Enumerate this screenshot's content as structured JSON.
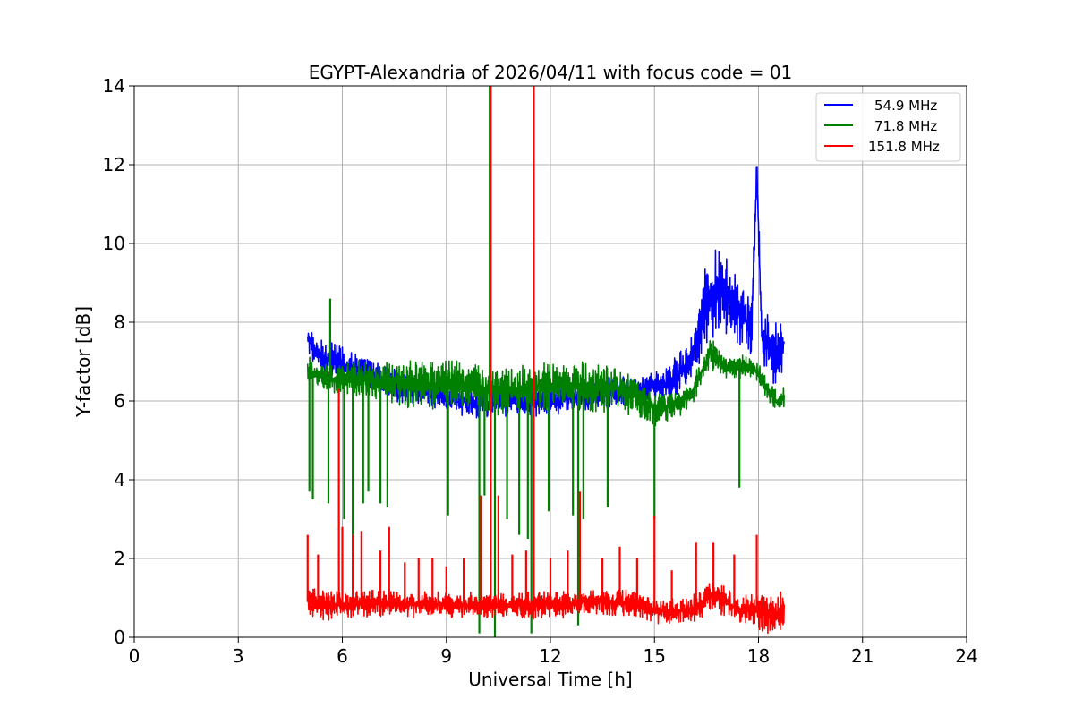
{
  "chart_data": {
    "type": "line",
    "title": "EGYPT-Alexandria of 2026/04/11 with focus code = 01",
    "xlabel": "Universal Time [h]",
    "ylabel": "Y-factor [dB]",
    "xlim": [
      0,
      24
    ],
    "ylim": [
      0,
      14
    ],
    "xticks": [
      0,
      3,
      6,
      9,
      12,
      15,
      18,
      21,
      24
    ],
    "yticks": [
      0,
      2,
      4,
      6,
      8,
      10,
      12,
      14
    ],
    "xtick_labels": [
      "0",
      "3",
      "6",
      "9",
      "12",
      "15",
      "18",
      "21",
      "24"
    ],
    "ytick_labels": [
      "0",
      "2",
      "4",
      "6",
      "8",
      "10",
      "12",
      "14"
    ],
    "grid": true,
    "legend_position": "top-right",
    "series": [
      {
        "name": "54.9 MHz",
        "color": "#0000ff",
        "x": [
          5.0,
          5.3,
          5.7,
          6.0,
          6.5,
          7.0,
          7.5,
          8.0,
          8.5,
          9.0,
          9.5,
          10.0,
          10.5,
          11.0,
          11.5,
          12.0,
          12.5,
          13.0,
          13.5,
          14.0,
          14.5,
          15.0,
          15.5,
          16.0,
          16.3,
          16.6,
          16.9,
          17.2,
          17.5,
          17.8,
          17.95,
          18.1,
          18.4,
          18.75
        ],
        "values": [
          7.6,
          7.2,
          7.0,
          6.9,
          6.8,
          6.6,
          6.4,
          6.3,
          6.2,
          6.1,
          6.0,
          5.9,
          6.0,
          6.0,
          6.0,
          6.0,
          6.1,
          6.1,
          6.2,
          6.2,
          6.3,
          6.4,
          6.5,
          7.0,
          7.8,
          8.7,
          8.8,
          8.5,
          8.2,
          7.8,
          11.8,
          7.6,
          7.2,
          7.5
        ],
        "amplitude": [
          0.35,
          0.35,
          0.5,
          0.4,
          0.4,
          0.4,
          0.35,
          0.35,
          0.3,
          0.3,
          0.35,
          0.35,
          0.35,
          0.35,
          0.35,
          0.35,
          0.35,
          0.35,
          0.35,
          0.35,
          0.35,
          0.35,
          0.45,
          0.5,
          0.8,
          1.0,
          0.9,
          0.8,
          0.7,
          0.6,
          0.5,
          0.7,
          0.7,
          0.7
        ],
        "spikes": [
          {
            "x": 17.95,
            "y": 11.85
          }
        ]
      },
      {
        "name": "71.8 MHz",
        "color": "#008000",
        "x": [
          5.0,
          5.5,
          6.0,
          6.5,
          7.0,
          7.5,
          8.0,
          8.5,
          9.0,
          9.5,
          10.0,
          10.5,
          11.0,
          11.5,
          12.0,
          12.5,
          13.0,
          13.5,
          14.0,
          14.5,
          15.0,
          15.5,
          16.0,
          16.3,
          16.6,
          16.8,
          17.0,
          17.3,
          17.6,
          17.9,
          18.2,
          18.5,
          18.75
        ],
        "values": [
          6.8,
          6.6,
          6.5,
          6.6,
          6.5,
          6.5,
          6.4,
          6.4,
          6.4,
          6.4,
          6.3,
          6.3,
          6.3,
          6.3,
          6.4,
          6.4,
          6.4,
          6.3,
          6.3,
          6.1,
          5.8,
          5.9,
          6.1,
          6.6,
          7.2,
          7.1,
          6.9,
          6.8,
          6.9,
          6.8,
          6.4,
          6.0,
          6.1
        ],
        "amplitude": [
          0.3,
          0.3,
          0.35,
          0.4,
          0.45,
          0.5,
          0.55,
          0.55,
          0.55,
          0.5,
          0.55,
          0.55,
          0.55,
          0.55,
          0.55,
          0.55,
          0.55,
          0.5,
          0.5,
          0.45,
          0.4,
          0.35,
          0.3,
          0.3,
          0.35,
          0.3,
          0.25,
          0.25,
          0.25,
          0.25,
          0.25,
          0.25,
          0.25
        ],
        "spikes": [
          {
            "x": 5.65,
            "y": 8.6
          },
          {
            "x": 10.25,
            "y": 14.0
          }
        ],
        "drops": [
          {
            "x": 5.05,
            "y": 3.7
          },
          {
            "x": 5.15,
            "y": 3.5
          },
          {
            "x": 5.6,
            "y": 3.4
          },
          {
            "x": 6.05,
            "y": 3.0
          },
          {
            "x": 6.3,
            "y": 2.6
          },
          {
            "x": 6.6,
            "y": 3.4
          },
          {
            "x": 6.75,
            "y": 3.7
          },
          {
            "x": 7.1,
            "y": 3.4
          },
          {
            "x": 7.3,
            "y": 3.3
          },
          {
            "x": 9.05,
            "y": 3.1
          },
          {
            "x": 9.95,
            "y": 0.1
          },
          {
            "x": 10.1,
            "y": 3.6
          },
          {
            "x": 10.4,
            "y": 0.0
          },
          {
            "x": 10.75,
            "y": 3.0
          },
          {
            "x": 11.1,
            "y": 2.6
          },
          {
            "x": 11.35,
            "y": 2.5
          },
          {
            "x": 11.45,
            "y": 0.1
          },
          {
            "x": 11.95,
            "y": 3.2
          },
          {
            "x": 12.65,
            "y": 3.1
          },
          {
            "x": 12.8,
            "y": 0.3
          },
          {
            "x": 12.95,
            "y": 3.0
          },
          {
            "x": 13.65,
            "y": 3.3
          },
          {
            "x": 15.0,
            "y": 3.0
          },
          {
            "x": 17.45,
            "y": 3.8
          }
        ]
      },
      {
        "name": "151.8 MHz",
        "color": "#ff0000",
        "x": [
          5.0,
          5.5,
          6.0,
          6.5,
          7.0,
          7.5,
          8.0,
          8.5,
          9.0,
          9.5,
          10.0,
          10.5,
          11.0,
          11.5,
          12.0,
          12.5,
          13.0,
          13.5,
          14.0,
          14.5,
          15.0,
          15.5,
          16.0,
          16.3,
          16.6,
          16.9,
          17.2,
          17.5,
          17.8,
          18.1,
          18.4,
          18.75
        ],
        "values": [
          0.9,
          0.8,
          0.8,
          0.85,
          0.85,
          0.85,
          0.85,
          0.85,
          0.8,
          0.8,
          0.8,
          0.8,
          0.8,
          0.8,
          0.85,
          0.85,
          0.9,
          0.9,
          0.9,
          0.85,
          0.7,
          0.65,
          0.7,
          0.8,
          1.1,
          1.0,
          0.8,
          0.7,
          0.7,
          0.6,
          0.6,
          0.6
        ],
        "amplitude": [
          0.4,
          0.35,
          0.3,
          0.3,
          0.3,
          0.3,
          0.3,
          0.3,
          0.3,
          0.3,
          0.3,
          0.3,
          0.3,
          0.3,
          0.3,
          0.3,
          0.3,
          0.3,
          0.3,
          0.3,
          0.3,
          0.3,
          0.3,
          0.3,
          0.35,
          0.35,
          0.3,
          0.3,
          0.35,
          0.4,
          0.45,
          0.5
        ],
        "spikes": [
          {
            "x": 5.0,
            "y": 2.6
          },
          {
            "x": 5.3,
            "y": 2.1
          },
          {
            "x": 5.9,
            "y": 6.3
          },
          {
            "x": 6.0,
            "y": 2.8
          },
          {
            "x": 6.3,
            "y": 2.6
          },
          {
            "x": 6.55,
            "y": 2.7
          },
          {
            "x": 7.1,
            "y": 2.2
          },
          {
            "x": 7.35,
            "y": 2.8
          },
          {
            "x": 7.8,
            "y": 1.9
          },
          {
            "x": 8.2,
            "y": 2.0
          },
          {
            "x": 8.6,
            "y": 2.0
          },
          {
            "x": 9.0,
            "y": 1.8
          },
          {
            "x": 9.5,
            "y": 2.0
          },
          {
            "x": 10.0,
            "y": 3.6
          },
          {
            "x": 10.28,
            "y": 14.0
          },
          {
            "x": 10.5,
            "y": 3.6
          },
          {
            "x": 10.9,
            "y": 2.1
          },
          {
            "x": 11.3,
            "y": 2.2
          },
          {
            "x": 11.52,
            "y": 14.0
          },
          {
            "x": 12.0,
            "y": 2.0
          },
          {
            "x": 12.5,
            "y": 2.2
          },
          {
            "x": 12.85,
            "y": 3.7
          },
          {
            "x": 13.5,
            "y": 2.0
          },
          {
            "x": 14.0,
            "y": 2.3
          },
          {
            "x": 14.5,
            "y": 2.0
          },
          {
            "x": 15.0,
            "y": 3.1
          },
          {
            "x": 15.5,
            "y": 1.7
          },
          {
            "x": 16.2,
            "y": 2.4
          },
          {
            "x": 16.7,
            "y": 2.4
          },
          {
            "x": 17.3,
            "y": 2.1
          },
          {
            "x": 17.95,
            "y": 2.6
          }
        ]
      }
    ]
  }
}
